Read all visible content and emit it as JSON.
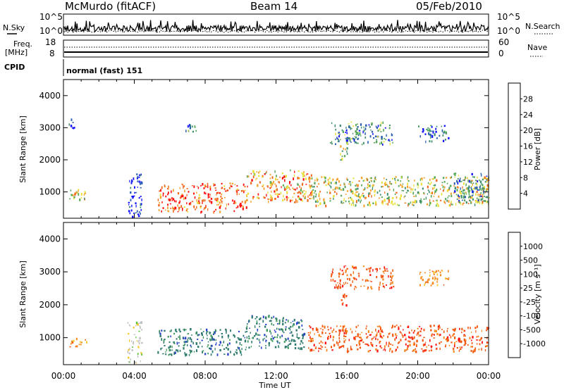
{
  "header": {
    "station": "McMurdo (fitACF)",
    "beam": "Beam 14",
    "date": "05/Feb/2010"
  },
  "status_panels": {
    "nsky_label": "N.Sky",
    "nsky_ticks": [
      "10^5",
      "10^0"
    ],
    "nsearch_label": "N.Search",
    "nsearch_ticks": [
      "10^5",
      "10^0"
    ],
    "freq_label": "Freq.",
    "freq_unit": "[MHz]",
    "freq_ticks": [
      "18",
      "8"
    ],
    "nave_label": "Nave",
    "nave_ticks": [
      "60",
      "0"
    ],
    "cpid_label": "CPID",
    "cpid_value": "normal (fast) 151"
  },
  "chart_data": [
    {
      "type": "heatmap",
      "name": "power",
      "ylabel": "Slant Range [km]",
      "xlabel": "",
      "ylim": [
        180,
        4500
      ],
      "xlim": [
        0,
        24
      ],
      "y_ticks": [
        "1000",
        "2000",
        "3000",
        "4000"
      ],
      "colorbar": {
        "label": "Power [dB]",
        "ticks": [
          "4",
          "8",
          "12",
          "16",
          "20",
          "24",
          "28"
        ],
        "colors": [
          "#1010ff",
          "#2a5fb0",
          "#3f8f6f",
          "#5aa85a",
          "#e8e23a",
          "#f2a22e",
          "#f06a1e",
          "#ff1010"
        ]
      },
      "activity": [
        {
          "x": [
            0.3,
            1.3
          ],
          "y": [
            700,
            1100
          ],
          "level": 0.6
        },
        {
          "x": [
            0.2,
            0.6
          ],
          "y": [
            2900,
            3300
          ],
          "level": 0.1
        },
        {
          "x": [
            3.6,
            4.4
          ],
          "y": [
            250,
            1600
          ],
          "level": 0.05
        },
        {
          "x": [
            5.3,
            10.3
          ],
          "y": [
            400,
            1300
          ],
          "level": 0.85
        },
        {
          "x": [
            6.8,
            7.6
          ],
          "y": [
            2900,
            3200
          ],
          "level": 0.3
        },
        {
          "x": [
            10.3,
            14.0
          ],
          "y": [
            700,
            1700
          ],
          "level": 0.7
        },
        {
          "x": [
            14.0,
            24.0
          ],
          "y": [
            600,
            1500
          ],
          "level": 0.55
        },
        {
          "x": [
            15.0,
            18.6
          ],
          "y": [
            2500,
            3200
          ],
          "level": 0.3
        },
        {
          "x": [
            20.0,
            21.8
          ],
          "y": [
            2600,
            3100
          ],
          "level": 0.2
        },
        {
          "x": [
            15.6,
            16.0
          ],
          "y": [
            2000,
            2500
          ],
          "level": 0.5
        },
        {
          "x": [
            22.0,
            23.9
          ],
          "y": [
            700,
            1600
          ],
          "level": 0.3
        }
      ]
    },
    {
      "type": "heatmap",
      "name": "velocity",
      "ylabel": "Slant Range [km]",
      "xlabel": "Time UT",
      "ylim": [
        180,
        4500
      ],
      "xlim": [
        0,
        24
      ],
      "y_ticks": [
        "1000",
        "2000",
        "3000",
        "4000"
      ],
      "x_ticks": [
        "00:00",
        "04:00",
        "08:00",
        "12:00",
        "16:00",
        "20:00",
        "00:00"
      ],
      "colorbar": {
        "label": "Velocity [m s⁻¹]",
        "ticks": [
          "1000",
          "500",
          "100",
          "25",
          "-25",
          "-100",
          "-500",
          "-1000"
        ],
        "colors": [
          "#2840c8",
          "#2f7a6e",
          "#3e9a5a",
          "#62c840",
          "#c0c0c0",
          "#f5c830",
          "#f58c20",
          "#f25a14",
          "#ff1010"
        ]
      },
      "activity": [
        {
          "x": [
            0.3,
            1.3
          ],
          "y": [
            700,
            1000
          ],
          "velocity": -150
        },
        {
          "x": [
            3.6,
            4.4
          ],
          "y": [
            250,
            1500
          ],
          "velocity": 0
        },
        {
          "x": [
            5.3,
            10.3
          ],
          "y": [
            500,
            1300
          ],
          "velocity": 300
        },
        {
          "x": [
            10.3,
            13.6
          ],
          "y": [
            700,
            1700
          ],
          "velocity": 400
        },
        {
          "x": [
            13.8,
            24.0
          ],
          "y": [
            600,
            1400
          ],
          "velocity": -300
        },
        {
          "x": [
            15.0,
            18.6
          ],
          "y": [
            2500,
            3200
          ],
          "velocity": -200
        },
        {
          "x": [
            20.0,
            21.8
          ],
          "y": [
            2600,
            3100
          ],
          "velocity": -150
        },
        {
          "x": [
            15.6,
            16.0
          ],
          "y": [
            2000,
            2400
          ],
          "velocity": -200
        }
      ]
    }
  ]
}
